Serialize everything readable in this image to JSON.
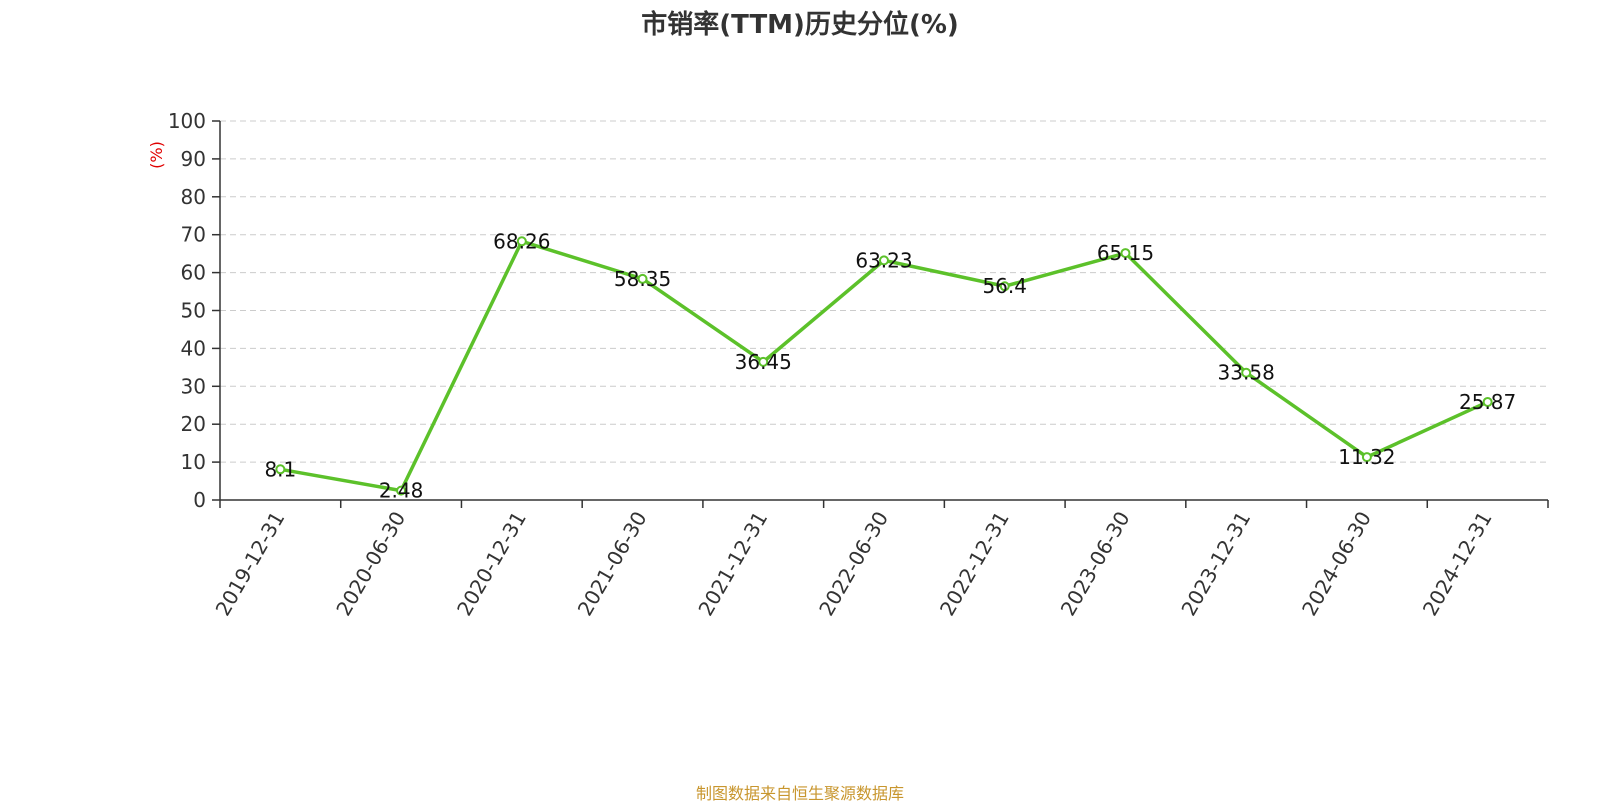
{
  "chart_data": {
    "type": "line",
    "title": "市销率(TTM)历史分位(%)",
    "ylabel": "(%)",
    "xlabel": "",
    "categories": [
      "2019-12-31",
      "2020-06-30",
      "2020-12-31",
      "2021-06-30",
      "2021-12-31",
      "2022-06-30",
      "2022-12-31",
      "2023-06-30",
      "2023-12-31",
      "2024-06-30",
      "2024-12-31"
    ],
    "series": [
      {
        "values": [
          8.1,
          2.48,
          68.26,
          58.35,
          36.45,
          63.23,
          56.4,
          65.15,
          33.58,
          11.32,
          25.87
        ]
      }
    ],
    "data_labels": [
      "8.1",
      "2.48",
      "68.26",
      "58.35",
      "36.45",
      "63.23",
      "56.4",
      "65.15",
      "33.58",
      "11.32",
      "25.87"
    ],
    "ylim": [
      0,
      100
    ],
    "yticks": [
      0,
      10,
      20,
      30,
      40,
      50,
      60,
      70,
      80,
      90,
      100
    ],
    "grid": true,
    "colors": {
      "line": "#5cc12a",
      "ylabel": "#e00000",
      "source": "#c8962e"
    }
  },
  "footer": {
    "source": "制图数据来自恒生聚源数据库"
  }
}
